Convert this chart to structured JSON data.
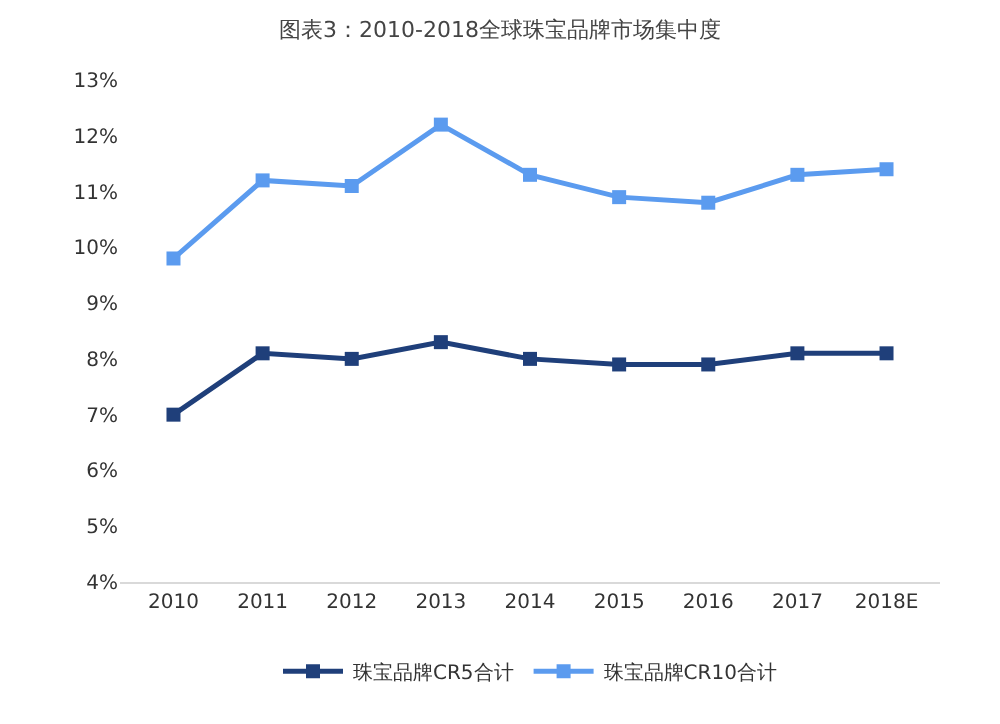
{
  "chart_data": {
    "type": "line",
    "title": "图表3：2010-2018全球珠宝品牌市场集中度",
    "categories": [
      "2010",
      "2011",
      "2012",
      "2013",
      "2014",
      "2015",
      "2016",
      "2017",
      "2018E"
    ],
    "series": [
      {
        "name": "珠宝品牌CR5合计",
        "color": "#1f3f7a",
        "values": [
          7.0,
          8.1,
          8.0,
          8.3,
          8.0,
          7.9,
          7.9,
          8.1,
          8.1
        ]
      },
      {
        "name": "珠宝品牌CR10合计",
        "color": "#5b9bef",
        "values": [
          9.8,
          11.2,
          11.1,
          12.2,
          11.3,
          10.9,
          10.8,
          11.3,
          11.4
        ]
      }
    ],
    "ylim": [
      4,
      13
    ],
    "yticks": [
      {
        "value": 4,
        "label": "4%"
      },
      {
        "value": 5,
        "label": "5%"
      },
      {
        "value": 6,
        "label": "6%"
      },
      {
        "value": 7,
        "label": "7%"
      },
      {
        "value": 8,
        "label": "8%"
      },
      {
        "value": 9,
        "label": "9%"
      },
      {
        "value": 10,
        "label": "10%"
      },
      {
        "value": 11,
        "label": "11%"
      },
      {
        "value": 12,
        "label": "12%"
      },
      {
        "value": 13,
        "label": "13%"
      }
    ],
    "legend": "bottom",
    "marker": "square",
    "line_style": "solid"
  }
}
